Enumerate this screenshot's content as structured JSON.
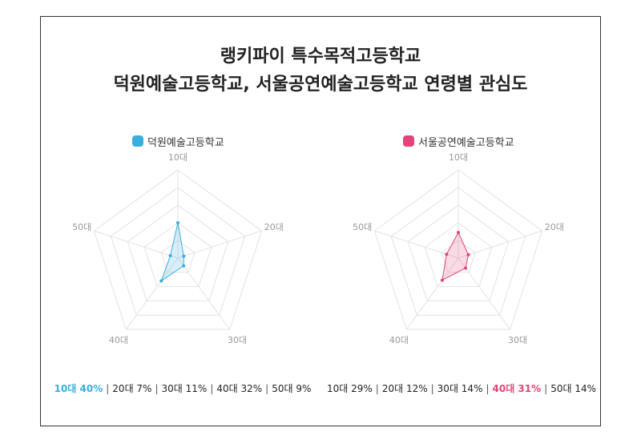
{
  "title_line1": "랭키파이 특수목적고등학교",
  "title_line2": "덕원예술고등학교, 서울공연예술고등학교 연령별 관심도",
  "chart_data": [
    {
      "type": "radar",
      "name": "덕원예술고등학교",
      "color": "#3aaee0",
      "axes": [
        "10대",
        "20대",
        "30대",
        "40대",
        "50대"
      ],
      "values": [
        40,
        7,
        11,
        32,
        9
      ],
      "max": 100,
      "highlight_index": 0,
      "summary_items": [
        "10대 40%",
        "20대 7%",
        "30대 11%",
        "40대 32%",
        "50대 9%"
      ]
    },
    {
      "type": "radar",
      "name": "서울공연예술고등학교",
      "color": "#e0457b",
      "axes": [
        "10대",
        "20대",
        "30대",
        "40대",
        "50대"
      ],
      "values": [
        29,
        12,
        14,
        31,
        14
      ],
      "max": 100,
      "highlight_index": 3,
      "summary_items": [
        "10대 29%",
        "20대 12%",
        "30대 14%",
        "40대 31%",
        "50대 14%"
      ]
    }
  ]
}
